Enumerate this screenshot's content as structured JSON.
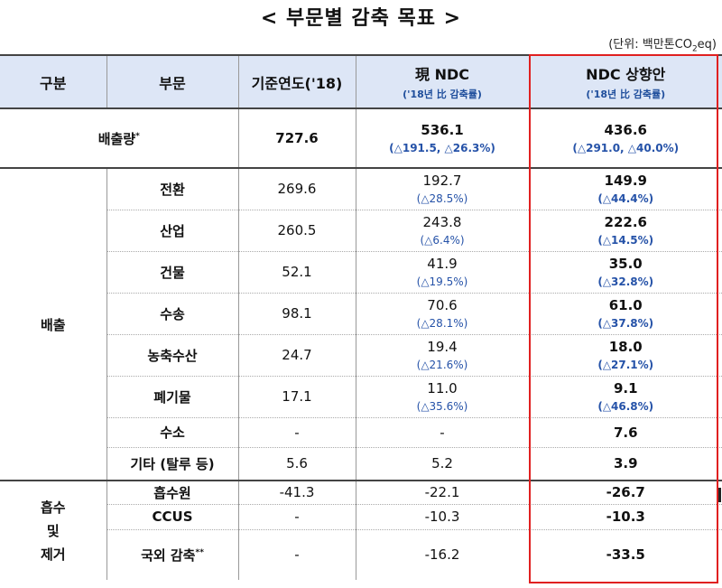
{
  "title": "< 부문별 감축 목표 >",
  "unit": {
    "prefix": "(단위: 백만톤CO",
    "sub": "2",
    "suffix": "eq)"
  },
  "headers": {
    "col1": "구분",
    "col2": "부문",
    "col3": "기준연도('18)",
    "col4": "現 NDC",
    "col4_sub": "('18년 比 감축률)",
    "col5": "NDC 상향안",
    "col5_sub": "('18년 比 감축률)"
  },
  "emissions_total": {
    "label": "배출량",
    "label_mark": "*",
    "base": "727.6",
    "current": "536.1",
    "current_pct": "(△191.5, △26.3%)",
    "proposed": "436.6",
    "proposed_pct": "(△291.0, △40.0%)"
  },
  "group_emission": "배출",
  "emission_rows": [
    {
      "sector": "전환",
      "base": "269.6",
      "current": "192.7",
      "current_pct": "(△28.5%)",
      "proposed": "149.9",
      "proposed_pct": "(△44.4%)"
    },
    {
      "sector": "산업",
      "base": "260.5",
      "current": "243.8",
      "current_pct": "(△6.4%)",
      "proposed": "222.6",
      "proposed_pct": "(△14.5%)"
    },
    {
      "sector": "건물",
      "base": "52.1",
      "current": "41.9",
      "current_pct": "(△19.5%)",
      "proposed": "35.0",
      "proposed_pct": "(△32.8%)"
    },
    {
      "sector": "수송",
      "base": "98.1",
      "current": "70.6",
      "current_pct": "(△28.1%)",
      "proposed": "61.0",
      "proposed_pct": "(△37.8%)"
    },
    {
      "sector": "농축수산",
      "base": "24.7",
      "current": "19.4",
      "current_pct": "(△21.6%)",
      "proposed": "18.0",
      "proposed_pct": "(△27.1%)"
    },
    {
      "sector": "폐기물",
      "base": "17.1",
      "current": "11.0",
      "current_pct": "(△35.6%)",
      "proposed": "9.1",
      "proposed_pct": "(△46.8%)"
    }
  ],
  "hydrogen_row": {
    "sector": "수소",
    "base": "-",
    "current": "-",
    "proposed": "7.6"
  },
  "other_row": {
    "sector": "기타 (탈루 등)",
    "base": "5.6",
    "current": "5.2",
    "proposed": "3.9"
  },
  "group_absorb": {
    "line1": "흡수",
    "line2": "및",
    "line3": "제거"
  },
  "absorb_rows": [
    {
      "sector": "흡수원",
      "mark": "",
      "base": "-41.3",
      "current": "-22.1",
      "proposed": "-26.7"
    },
    {
      "sector": "CCUS",
      "mark": "",
      "base": "-",
      "current": "-10.3",
      "proposed": "-10.3"
    },
    {
      "sector": "국외 감축",
      "mark": "**",
      "base": "-",
      "current": "-16.2",
      "proposed": "-33.5"
    }
  ]
}
